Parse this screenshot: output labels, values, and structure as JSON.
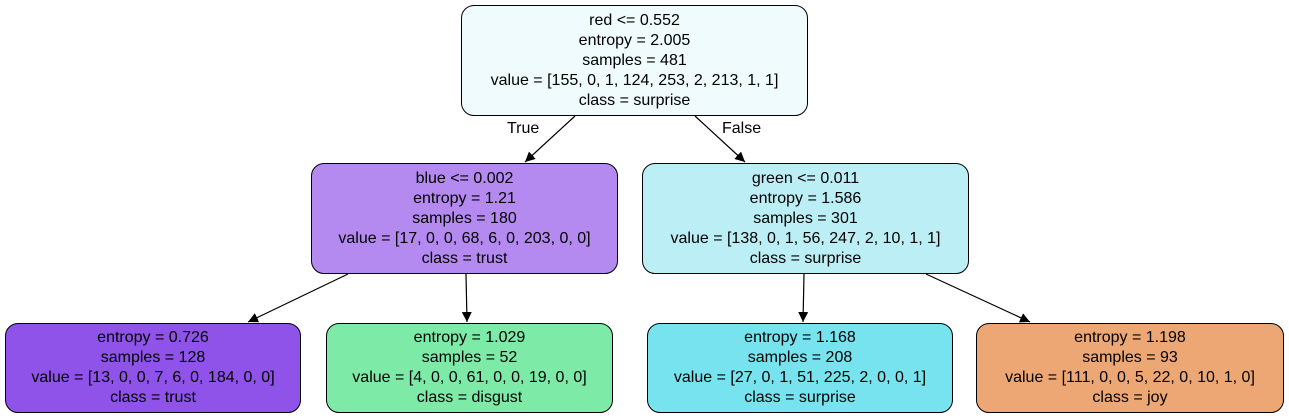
{
  "tree": {
    "nodes": [
      {
        "id": "root",
        "lines": [
          "red <= 0.552",
          "entropy = 2.005",
          "samples = 481",
          "value = [155, 0, 1, 124, 253, 2, 213, 1, 1]",
          "class = surprise"
        ],
        "color": "#f0fbfd"
      },
      {
        "id": "left",
        "lines": [
          "blue <= 0.002",
          "entropy = 1.21",
          "samples = 180",
          "value = [17, 0, 0, 68, 6, 0, 203, 0, 0]",
          "class = trust"
        ],
        "color": "#b48af1"
      },
      {
        "id": "right",
        "lines": [
          "green <= 0.011",
          "entropy = 1.586",
          "samples = 301",
          "value = [138, 0, 1, 56, 247, 2, 10, 1, 1]",
          "class = surprise"
        ],
        "color": "#bbeff5"
      },
      {
        "id": "leaf-trust",
        "lines": [
          "entropy = 0.726",
          "samples = 128",
          "value = [13, 0, 0, 7, 6, 0, 184, 0, 0]",
          "class = trust"
        ],
        "color": "#8f53e9"
      },
      {
        "id": "leaf-disgust",
        "lines": [
          "entropy = 1.029",
          "samples = 52",
          "value = [4, 0, 0, 61, 0, 0, 19, 0, 0]",
          "class = disgust"
        ],
        "color": "#7eeaa8"
      },
      {
        "id": "leaf-surprise",
        "lines": [
          "entropy = 1.168",
          "samples = 208",
          "value = [27, 0, 1, 51, 225, 2, 0, 0, 1]",
          "class = surprise"
        ],
        "color": "#77e3ee"
      },
      {
        "id": "leaf-joy",
        "lines": [
          "entropy = 1.198",
          "samples = 93",
          "value = [111, 0, 0, 5, 22, 0, 10, 1, 0]",
          "class = joy"
        ],
        "color": "#eda774"
      }
    ],
    "edge_labels": {
      "true": "True",
      "false": "False"
    }
  }
}
